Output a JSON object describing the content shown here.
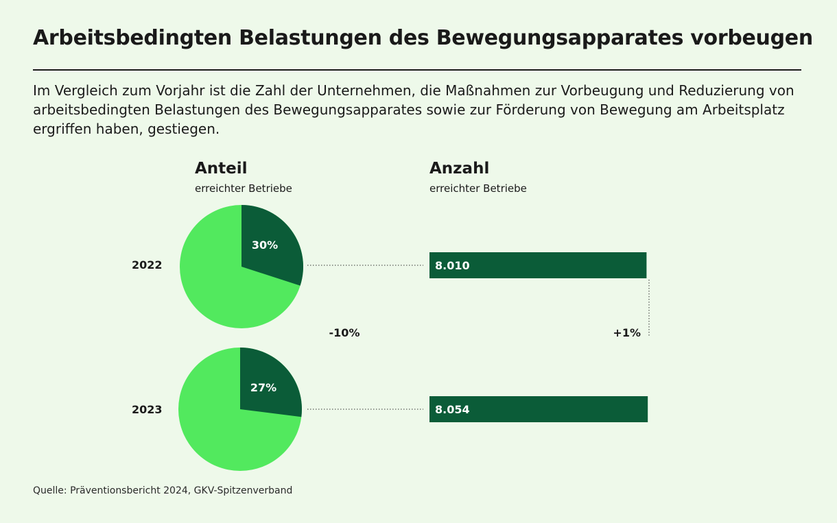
{
  "title": "Arbeitsbedingten Belastungen des Bewegungsapparates vorbeugen",
  "subtitle": "Im Vergleich zum Vorjahr ist die Zahl der Unternehmen, die Maßnahmen zur Vorbeugung und Reduzierung von arbeitsbedingten Belastungen des Bewegungsapparates sowie zur Förderung von Bewegung am Arbeitsplatz ergriffen haben, gestiegen.",
  "anteil": {
    "heading": "Anteil",
    "subheading": "erreichter Betriebe"
  },
  "anzahl": {
    "heading": "Anzahl",
    "subheading": "erreichter Betriebe"
  },
  "source": "Quelle: Präventionsbericht 2024, GKV-Spitzenverband",
  "colors": {
    "pie_light": "#52e95e",
    "dark": "#0b5c38",
    "background": "#eef9ea"
  },
  "chart_data": [
    {
      "type": "pie",
      "title": "Anteil erreichter Betriebe",
      "categories": [
        "2022",
        "2023"
      ],
      "values_percent": [
        30,
        27
      ],
      "value_labels": [
        "30%",
        "27%"
      ],
      "change_label": "-10%"
    },
    {
      "type": "bar",
      "orientation": "horizontal",
      "title": "Anzahl erreichter Betriebe",
      "categories": [
        "2022",
        "2023"
      ],
      "values": [
        8010,
        8054
      ],
      "value_labels": [
        "8.010",
        "8.054"
      ],
      "xlim": [
        0,
        8100
      ],
      "change_label": "+1%"
    }
  ]
}
